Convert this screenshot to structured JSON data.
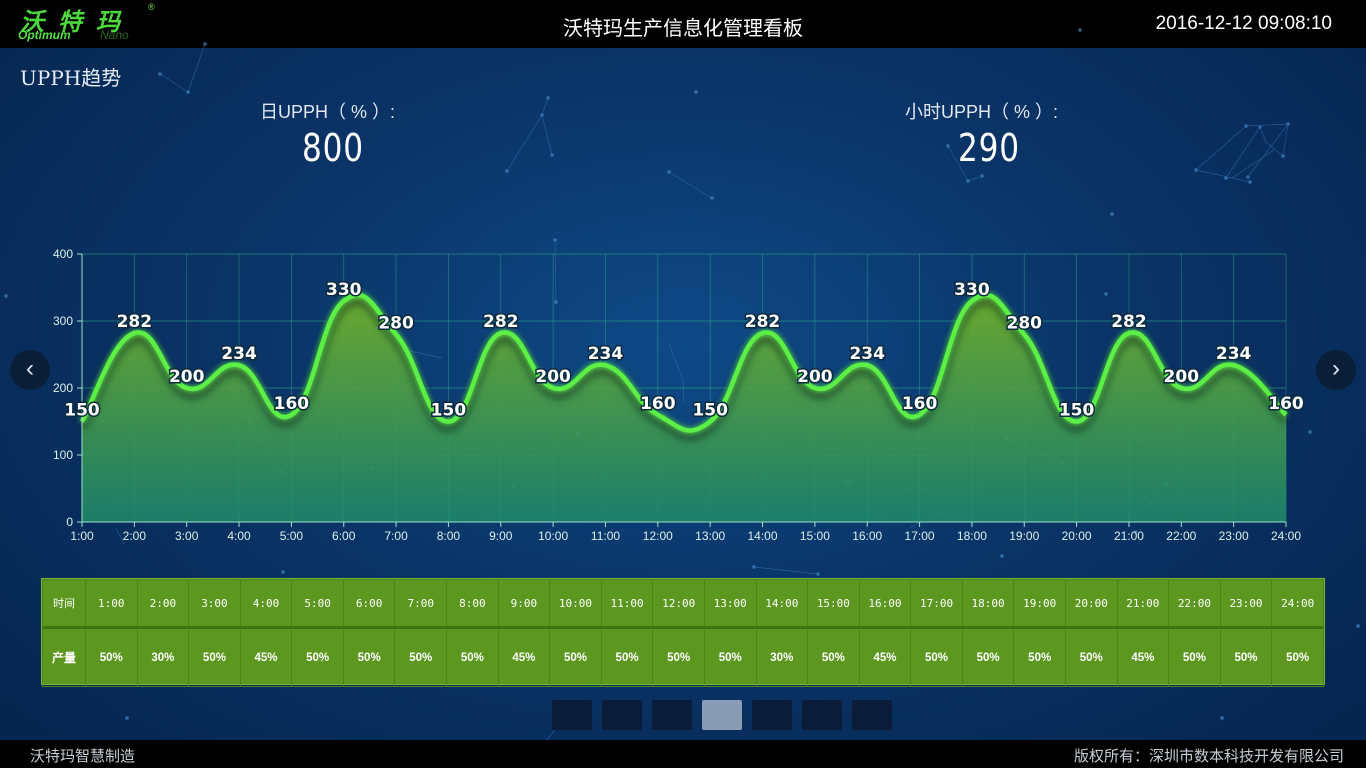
{
  "brand": {
    "logo_cn": "沃特玛",
    "logo_reg": "®",
    "logo_en1": "Optimum",
    "logo_en2": "Nano"
  },
  "header": {
    "title": "沃特玛生产信息化管理看板",
    "datetime": "2016-12-12 09:08:10"
  },
  "section": {
    "title": "UPPH趋势"
  },
  "metrics": {
    "daily": {
      "label": "日UPPH（ % ）:",
      "value": "800"
    },
    "hourly": {
      "label": "小时UPPH（ % ）:",
      "value": "290"
    }
  },
  "nav": {
    "prev": "‹",
    "next": "›"
  },
  "chart_data": {
    "type": "area",
    "categories": [
      "1:00",
      "2:00",
      "3:00",
      "4:00",
      "5:00",
      "6:00",
      "7:00",
      "8:00",
      "9:00",
      "10:00",
      "11:00",
      "12:00",
      "13:00",
      "14:00",
      "15:00",
      "16:00",
      "17:00",
      "18:00",
      "19:00",
      "20:00",
      "21:00",
      "22:00",
      "23:00",
      "24:00"
    ],
    "series": [
      {
        "values": [
          150,
          282,
          200,
          234,
          160,
          330,
          280,
          150,
          282,
          200,
          234,
          160,
          150,
          282,
          200,
          234,
          160,
          330,
          280,
          150,
          282,
          200,
          234,
          160
        ]
      }
    ],
    "ylim": [
      0,
      400
    ],
    "yticks": [
      0,
      100,
      200,
      300,
      400
    ],
    "grid": true,
    "smooth": true,
    "colors": {
      "line": "#5cf046",
      "area_top": "#6fae2a",
      "area_bottom": "#1f8a6a",
      "grid": "#2ea889",
      "axis_text": "#d8f2e8"
    }
  },
  "table": {
    "row1_header": "时间",
    "row2_header": "产量",
    "times": [
      "1:00",
      "2:00",
      "3:00",
      "4:00",
      "5:00",
      "6:00",
      "7:00",
      "8:00",
      "9:00",
      "10:00",
      "11:00",
      "12:00",
      "13:00",
      "14:00",
      "15:00",
      "16:00",
      "17:00",
      "18:00",
      "19:00",
      "20:00",
      "21:00",
      "22:00",
      "23:00",
      "24:00"
    ],
    "outputs": [
      "50%",
      "30%",
      "50%",
      "45%",
      "50%",
      "50%",
      "50%",
      "50%",
      "45%",
      "50%",
      "50%",
      "50%",
      "50%",
      "30%",
      "50%",
      "45%",
      "50%",
      "50%",
      "50%",
      "50%",
      "45%",
      "50%",
      "50%",
      "50%"
    ]
  },
  "pager": {
    "count": 7,
    "active_index": 3
  },
  "footer": {
    "left": "沃特玛智慧制造",
    "right": "版权所有：深圳市数本科技开发有限公司"
  }
}
